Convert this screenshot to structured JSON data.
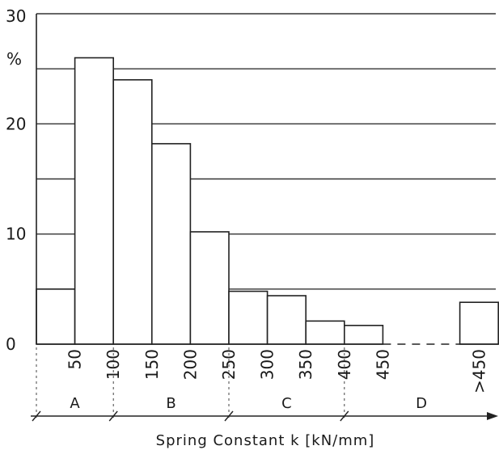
{
  "chart_data": {
    "type": "bar",
    "ylabel": "%",
    "xlabel": "Spring Constant k [kN/mm]",
    "ylim": [
      0,
      30
    ],
    "y_ticks": [
      "0",
      "10",
      "20",
      "30"
    ],
    "grid": true,
    "bins": [
      {
        "from": 0,
        "to": 50,
        "value": 5
      },
      {
        "from": 50,
        "to": 100,
        "value": 26
      },
      {
        "from": 100,
        "to": 150,
        "value": 24
      },
      {
        "from": 150,
        "to": 200,
        "value": 18.2
      },
      {
        "from": 200,
        "to": 250,
        "value": 10.2
      },
      {
        "from": 250,
        "to": 300,
        "value": 4.8
      },
      {
        "from": 300,
        "to": 350,
        "value": 4.4
      },
      {
        "from": 350,
        "to": 400,
        "value": 2.1
      },
      {
        "from": 400,
        "to": 450,
        "value": 1.7
      },
      {
        "from": 450,
        "to": 500,
        "value": 0
      },
      {
        "from": 500,
        "to": 550,
        "value": 0
      },
      {
        "from": 550,
        "to": 600,
        "value": 3.8
      }
    ],
    "x_tick_labels": [
      {
        "at": 50,
        "text": "50"
      },
      {
        "at": 100,
        "text": "100"
      },
      {
        "at": 150,
        "text": "150"
      },
      {
        "at": 200,
        "text": "200"
      },
      {
        "at": 250,
        "text": "250"
      },
      {
        "at": 300,
        "text": "300"
      },
      {
        "at": 350,
        "text": "350"
      },
      {
        "at": 400,
        "text": "400"
      },
      {
        "at": 450,
        "text": "450"
      },
      {
        "at": 575,
        "text": ">450"
      }
    ],
    "categories": [
      {
        "from": 0,
        "to": 100,
        "label": "A"
      },
      {
        "from": 100,
        "to": 250,
        "label": "B"
      },
      {
        "from": 250,
        "to": 400,
        "label": "C"
      },
      {
        "from": 400,
        "to": 600,
        "label": "D"
      }
    ]
  }
}
